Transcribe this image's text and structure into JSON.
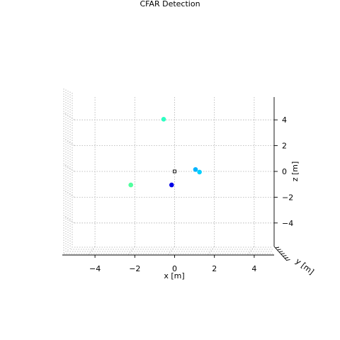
{
  "chart_data": {
    "type": "scatter",
    "title": "CFAR Detection",
    "xlabel": "x [m]",
    "ylabel": "y [m]",
    "zlabel": "z [m]",
    "projection": "3d",
    "grid": true,
    "xlim": [
      -5.8,
      5.0
    ],
    "zlim": [
      -5.8,
      5.4
    ],
    "xticks": [
      -4,
      -2,
      0,
      2,
      4
    ],
    "xtick_labels": [
      "−4",
      "−2",
      "0",
      "2",
      "4"
    ],
    "zticks": [
      -4,
      -2,
      0,
      2,
      4
    ],
    "ztick_labels": [
      "−4",
      "−2",
      "0",
      "2",
      "4"
    ],
    "ytick_labels": [
      "",
      "",
      "",
      "",
      "",
      "",
      ""
    ],
    "points": [
      {
        "x": -0.55,
        "z": 4.05,
        "color": "#2dffc2"
      },
      {
        "x": 1.05,
        "z": 0.15,
        "color": "#00b4ff"
      },
      {
        "x": 1.25,
        "z": -0.05,
        "color": "#00d0ff"
      },
      {
        "x": -2.2,
        "z": -1.05,
        "color": "#50ff9e"
      },
      {
        "x": -0.15,
        "z": -1.05,
        "color": "#0000e6"
      }
    ],
    "origin_marker": {
      "x": 0.0,
      "z": 0.0,
      "shape": "square",
      "color": "#000000"
    }
  }
}
